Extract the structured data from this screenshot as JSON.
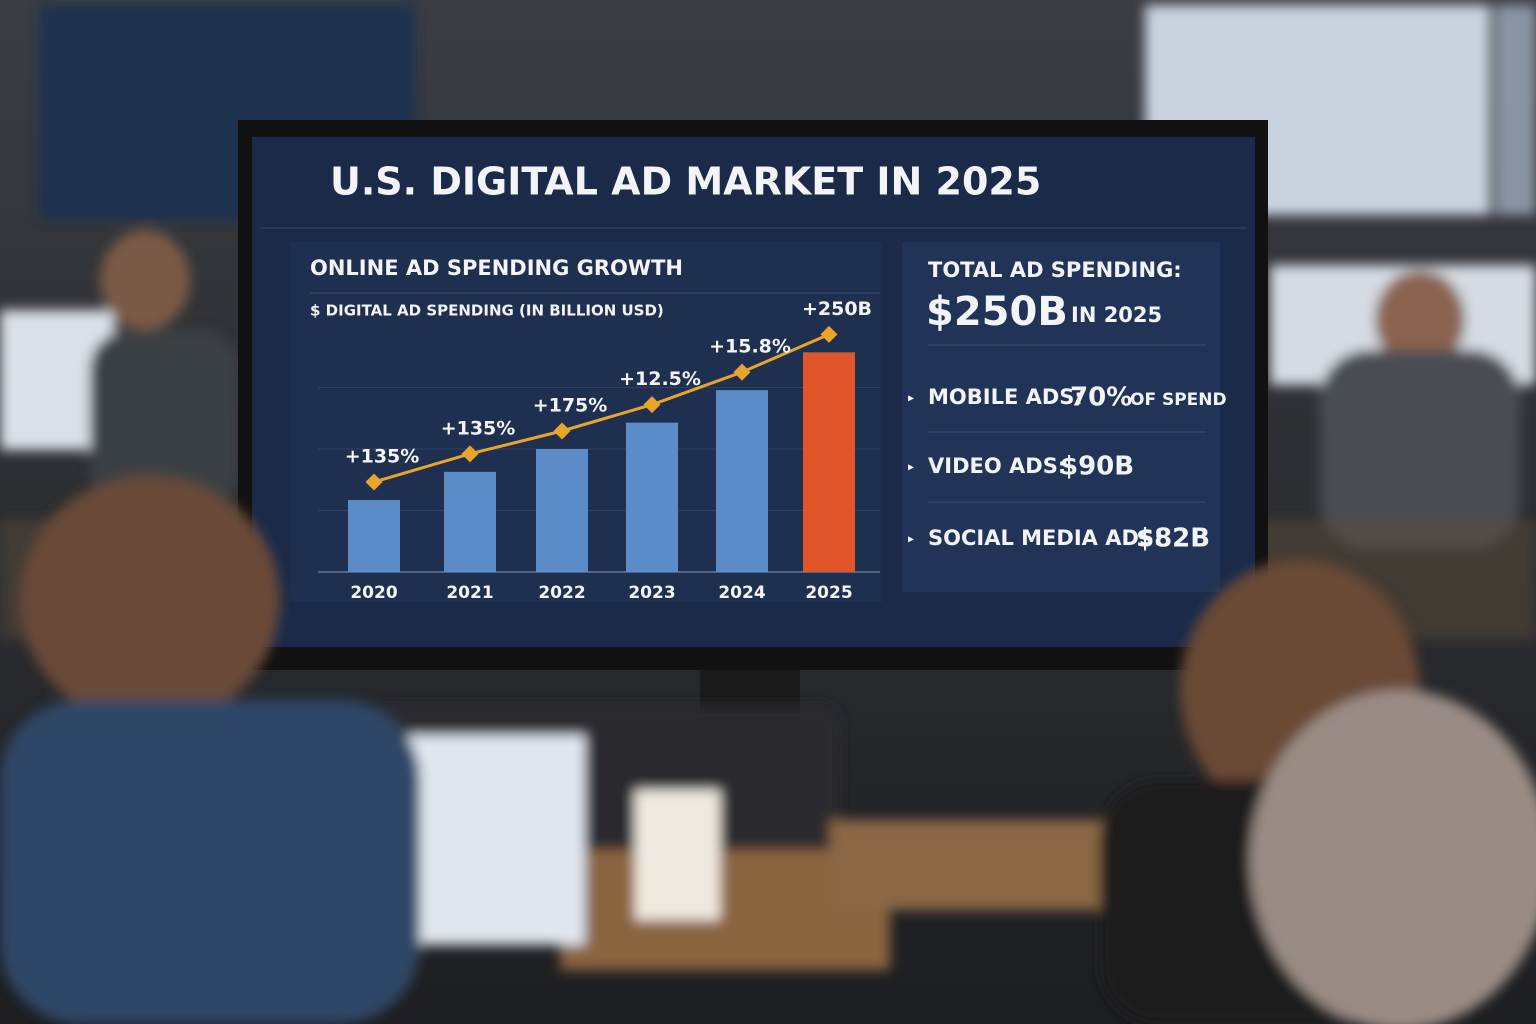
{
  "screen": {
    "title": "U.S. DIGITAL AD MARKET IN 2025",
    "panel": {
      "heading": "TOTAL AD SPENDING:",
      "total": "$250B",
      "total_note": "IN 2025",
      "items": [
        {
          "label": "MOBILE ADS:",
          "value": "70%",
          "note": "OF SPEND"
        },
        {
          "label": "VIDEO ADS:",
          "value": "$90B"
        },
        {
          "label": "SOCIAL MEDIA ADS:",
          "value": "$82B"
        }
      ]
    }
  },
  "chart_data": {
    "type": "bar",
    "title": "ONLINE AD SPENDING GROWTH",
    "subtitle": "$ DIGITAL AD SPENDING (IN BILLION USD)",
    "categories": [
      "2020",
      "2021",
      "2022",
      "2023",
      "2024",
      "2025"
    ],
    "values": [
      82,
      114,
      140,
      170,
      207,
      250
    ],
    "point_labels": [
      "+135%",
      "+135%",
      "+175%",
      "+12.5%",
      "+15.8%",
      "+250B"
    ],
    "colors": [
      "#5b8cc8",
      "#5b8cc8",
      "#5b8cc8",
      "#5b8cc8",
      "#5b8cc8",
      "#e0562a"
    ],
    "trend_color": "#e9a42c",
    "ylim": [
      0,
      280
    ],
    "grid": true
  }
}
